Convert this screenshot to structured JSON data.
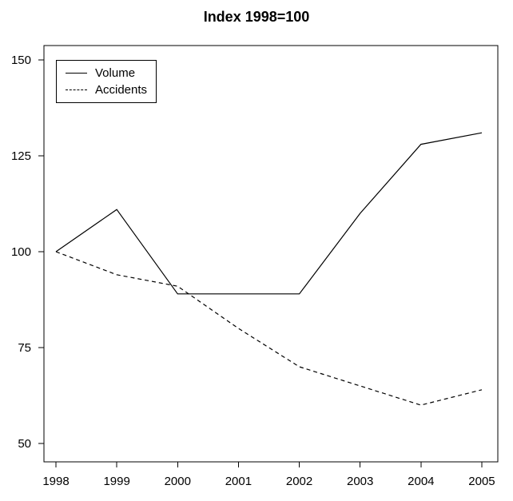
{
  "chart_data": {
    "type": "line",
    "title": "Index 1998=100",
    "x": [
      1998,
      1999,
      2000,
      2001,
      2002,
      2003,
      2004,
      2005
    ],
    "x_tick_labels": [
      "1998",
      "1999",
      "2000",
      "2001",
      "2002",
      "2003",
      "2004",
      "2005"
    ],
    "y_ticks": [
      50,
      75,
      100,
      125,
      150
    ],
    "series": [
      {
        "name": "Volume",
        "style": "solid",
        "values": [
          100,
          111,
          89,
          89,
          89,
          110,
          128,
          131
        ]
      },
      {
        "name": "Accidents",
        "style": "dashed",
        "values": [
          100,
          94,
          91,
          80,
          70,
          65,
          60,
          64
        ]
      }
    ],
    "xlabel": "",
    "ylabel": "",
    "xlim": [
      1997.72,
      2005.28
    ],
    "ylim": [
      46,
      154
    ],
    "grid": false,
    "legend_position": "top-left",
    "line_color": "#000000",
    "background_color": "#ffffff"
  }
}
